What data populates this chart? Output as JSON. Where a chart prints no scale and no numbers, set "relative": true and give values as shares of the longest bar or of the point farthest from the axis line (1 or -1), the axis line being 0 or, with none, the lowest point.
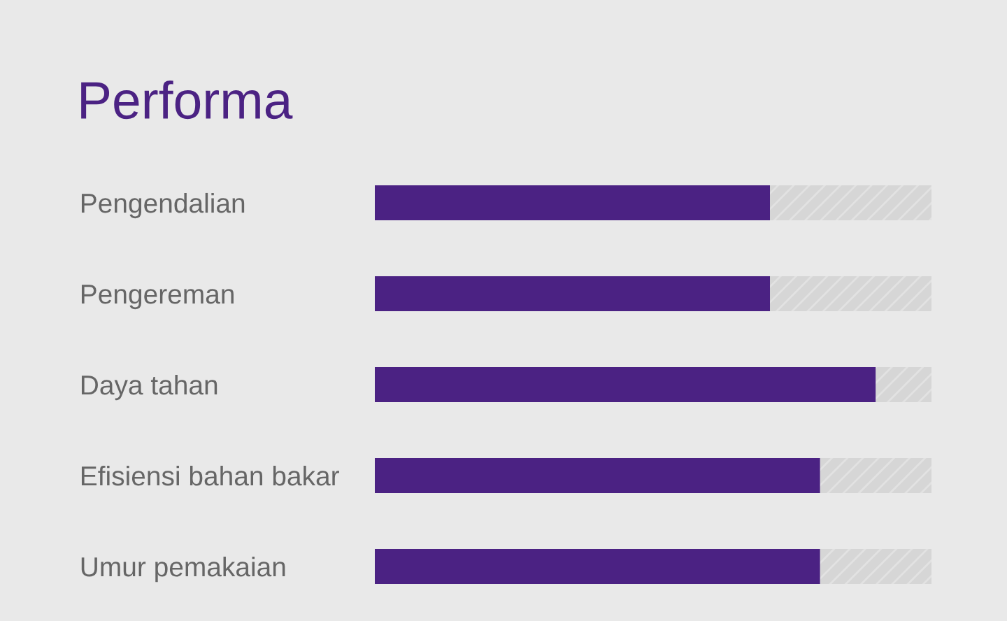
{
  "chart_data": {
    "type": "bar",
    "orientation": "horizontal",
    "relative": true,
    "stacked": true,
    "title": "Performa",
    "categories": [
      "Pengendalian",
      "Pengereman",
      "Daya tahan",
      "Efisiensi bahan bakar",
      "Umur pemakaian"
    ],
    "series": [
      {
        "color": "#4b2283",
        "values": [
          0.71,
          0.71,
          0.9,
          0.8,
          0.8
        ]
      },
      {
        "color": "#d6d6d6",
        "values": [
          0.29,
          0.29,
          0.1,
          0.2,
          0.2
        ]
      }
    ],
    "grid": false,
    "legend": false
  }
}
